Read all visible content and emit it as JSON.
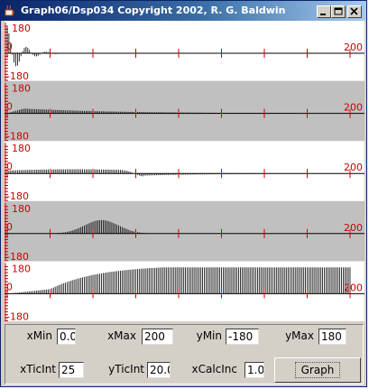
{
  "window": {
    "title": "Graph06/Dsp034 Copyright 2002, R. G. Baldwin"
  },
  "plots": {
    "y_max_label": "180",
    "y_min_label": "-180",
    "zero_label": "0",
    "x_end_label": "200",
    "row_colors": [
      "#ffffff",
      "#c0c0c0",
      "#ffffff",
      "#c0c0c0",
      "#ffffff"
    ],
    "axis_color": "#000000",
    "trace_color": "#000000",
    "tick_color": "#cc0000"
  },
  "controls": {
    "xmin_label": "xMin",
    "xmin_value": "0.0",
    "xmax_label": "xMax",
    "xmax_value": "200",
    "ymin_label": "yMin",
    "ymin_value": "-180",
    "ymax_label": "yMax",
    "ymax_value": "180",
    "xticint_label": "xTicInt",
    "xticint_value": "25",
    "yticint_label": "yTicInt",
    "yticint_value": "20.0",
    "xcalcinc_label": "xCalcInc",
    "xcalcinc_value": "1.0",
    "graph_button": "Graph"
  }
}
